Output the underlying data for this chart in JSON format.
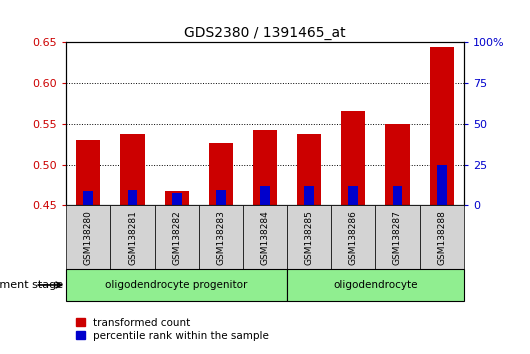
{
  "title": "GDS2380 / 1391465_at",
  "samples": [
    "GSM138280",
    "GSM138281",
    "GSM138282",
    "GSM138283",
    "GSM138284",
    "GSM138285",
    "GSM138286",
    "GSM138287",
    "GSM138288"
  ],
  "red_values": [
    0.53,
    0.537,
    0.468,
    0.527,
    0.542,
    0.537,
    0.566,
    0.55,
    0.645
  ],
  "blue_values": [
    0.468,
    0.469,
    0.465,
    0.469,
    0.474,
    0.474,
    0.474,
    0.474,
    0.5
  ],
  "bar_bottom": 0.45,
  "ylim": [
    0.45,
    0.65
  ],
  "yticks_left": [
    0.45,
    0.5,
    0.55,
    0.6,
    0.65
  ],
  "ytick_right_labels": [
    "0",
    "25",
    "50",
    "75",
    "100%"
  ],
  "left_color": "#cc0000",
  "right_color": "#0000cc",
  "blue_color": "#0000cc",
  "red_color": "#cc0000",
  "group1_label": "oligodendrocyte progenitor",
  "group2_label": "oligodendrocyte",
  "group1_indices": [
    0,
    1,
    2,
    3,
    4
  ],
  "group2_indices": [
    5,
    6,
    7,
    8
  ],
  "dev_stage_label": "development stage",
  "legend1": "transformed count",
  "legend2": "percentile rank within the sample",
  "bar_width": 0.55,
  "group1_color": "#90ee90",
  "group2_color": "#90ee90",
  "bg_color": "#d3d3d3"
}
